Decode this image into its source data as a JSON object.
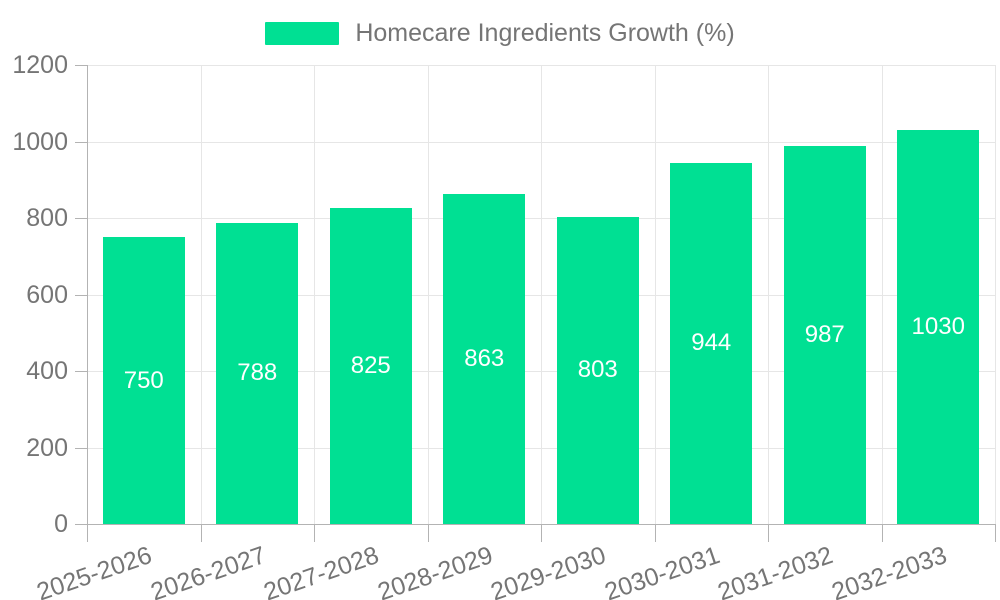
{
  "legend": {
    "label": "Homecare Ingredients Growth (%)"
  },
  "chart_data": {
    "type": "bar",
    "title": "Homecare Ingredients Growth (%)",
    "series_name": "Homecare Ingredients Growth (%)",
    "categories": [
      "2025-2026",
      "2026-2027",
      "2027-2028",
      "2028-2029",
      "2029-2030",
      "2030-2031",
      "2031-2032",
      "2032-2033"
    ],
    "values": [
      750,
      788,
      825,
      863,
      803,
      944,
      987,
      1030
    ],
    "value_labels": [
      "750",
      "788",
      "825",
      "863",
      "803",
      "944",
      "987",
      "1030"
    ],
    "ylim": [
      0,
      1200
    ],
    "yticks": [
      0,
      200,
      400,
      600,
      800,
      1000,
      1200
    ],
    "ytick_labels": [
      "0",
      "200",
      "400",
      "600",
      "800",
      "1000",
      "1200"
    ],
    "grid": true,
    "legend_position": "top",
    "colors": {
      "bar": "#00e093",
      "grid": "#e6e6e6",
      "axis": "#b3b3b3",
      "tick_label": "#757575",
      "legend_text": "#757575",
      "value_label": "#ffffff",
      "background": "#ffffff"
    }
  }
}
